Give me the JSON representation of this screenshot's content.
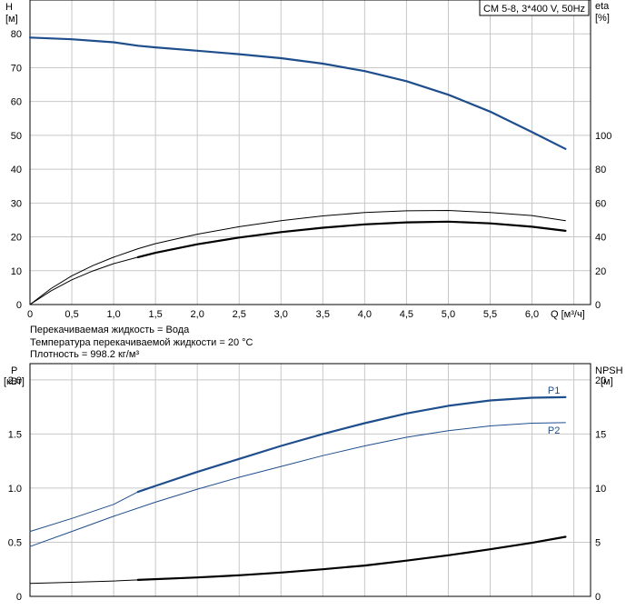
{
  "chart_data": [
    {
      "type": "line",
      "title": "CM 5-8, 3*400 V, 50Hz",
      "xlabel": "Q [м³/ч]",
      "ylabel_left": [
        "H",
        "[м]"
      ],
      "ylabel_right": [
        "eta",
        "[%]"
      ],
      "xlim": [
        0,
        6.7
      ],
      "ylim_left": [
        0,
        90
      ],
      "ylim_right": [
        0,
        180
      ],
      "x_ticks": [
        "0",
        "0,5",
        "1,0",
        "1,5",
        "2,0",
        "2,5",
        "3,0",
        "3,5",
        "4,0",
        "4,5",
        "5,0",
        "5,5",
        "6,0"
      ],
      "y_ticks_left": [
        "0",
        "10",
        "20",
        "30",
        "40",
        "50",
        "60",
        "70",
        "80"
      ],
      "y_ticks_right": [
        "0",
        "20",
        "40",
        "60",
        "80",
        "100"
      ],
      "grid": true,
      "series": [
        {
          "color": "#1f4e8c",
          "axis": "left",
          "width": 2.2,
          "x": [
            0,
            0.5,
            1.0,
            1.29,
            1.5,
            2.0,
            2.5,
            3.0,
            3.5,
            4.0,
            4.5,
            5.0,
            5.5,
            6.0,
            6.4
          ],
          "y": [
            78.9,
            78.4,
            77.5,
            76.5,
            76.0,
            75.0,
            74.0,
            72.8,
            71.2,
            69.0,
            66.0,
            62.0,
            57.0,
            51.0,
            46.0
          ]
        },
        {
          "color": "#000000",
          "axis": "right",
          "width": 1.0,
          "x": [
            0,
            0.25,
            0.5,
            0.75,
            1.0,
            1.29,
            1.5,
            2.0,
            2.5,
            3.0,
            3.5,
            4.0,
            4.5,
            5.0,
            5.5,
            6.0,
            6.4
          ],
          "y": [
            0,
            9.4,
            17.0,
            23.0,
            28.0,
            33.0,
            36.0,
            41.6,
            46.0,
            49.6,
            52.4,
            54.4,
            55.4,
            55.6,
            54.4,
            52.6,
            49.6
          ]
        },
        {
          "color": "#000000",
          "axis": "right",
          "width": 1.0,
          "x": [
            0,
            0.25,
            0.5,
            0.75,
            1.0,
            1.29
          ],
          "y": [
            0,
            8.0,
            14.6,
            19.8,
            24.2,
            28.0
          ]
        },
        {
          "color": "#000000",
          "axis": "right",
          "width": 2.2,
          "x": [
            1.29,
            1.5,
            2.0,
            2.5,
            3.0,
            3.5,
            4.0,
            4.5,
            5.0,
            5.5,
            6.0,
            6.4
          ],
          "y": [
            28.0,
            30.6,
            35.6,
            39.6,
            42.8,
            45.4,
            47.4,
            48.6,
            49.0,
            48.0,
            46.0,
            43.6
          ]
        }
      ]
    },
    {
      "type": "line",
      "xlabel": "",
      "ylabel_left": [
        "P",
        "[кВт]"
      ],
      "ylabel_right": [
        "NPSH",
        "[м]"
      ],
      "xlim": [
        0,
        6.7
      ],
      "ylim_left": [
        0,
        2.15
      ],
      "ylim_right": [
        0,
        21.5
      ],
      "y_ticks_left": [
        "0",
        "0.5",
        "1.0",
        "1.5",
        "2.0"
      ],
      "y_ticks_right": [
        "0",
        "5",
        "10",
        "15",
        "20"
      ],
      "grid": true,
      "series": [
        {
          "name": "P1",
          "color": "#1f4e8c",
          "axis": "left",
          "width": 2.2,
          "x": [
            1.29,
            1.5,
            2.0,
            2.5,
            3.0,
            3.5,
            4.0,
            4.5,
            5.0,
            5.5,
            6.0,
            6.4
          ],
          "y": [
            0.965,
            1.02,
            1.15,
            1.27,
            1.39,
            1.5,
            1.6,
            1.69,
            1.76,
            1.81,
            1.835,
            1.84
          ]
        },
        {
          "color": "#1f4e8c",
          "axis": "left",
          "width": 1.0,
          "x": [
            0,
            0.5,
            1.0,
            1.29
          ],
          "y": [
            0.6,
            0.72,
            0.85,
            0.965
          ]
        },
        {
          "name": "P2",
          "color": "#1f4e8c",
          "axis": "left",
          "width": 1.0,
          "x": [
            0,
            0.5,
            1.0,
            1.5,
            2.0,
            2.5,
            3.0,
            3.5,
            4.0,
            4.5,
            5.0,
            5.5,
            6.0,
            6.4
          ],
          "y": [
            0.46,
            0.6,
            0.74,
            0.87,
            0.99,
            1.1,
            1.2,
            1.3,
            1.39,
            1.47,
            1.53,
            1.575,
            1.6,
            1.605
          ]
        },
        {
          "color": "#000000",
          "axis": "right",
          "width": 1.0,
          "x": [
            0,
            0.5,
            1.0,
            1.29
          ],
          "y": [
            1.2,
            1.3,
            1.42,
            1.52
          ]
        },
        {
          "color": "#000000",
          "axis": "right",
          "width": 2.2,
          "x": [
            1.29,
            2.0,
            2.5,
            3.0,
            3.5,
            4.0,
            4.5,
            5.0,
            5.5,
            6.0,
            6.4
          ],
          "y": [
            1.52,
            1.75,
            1.95,
            2.2,
            2.5,
            2.85,
            3.3,
            3.8,
            4.35,
            4.95,
            5.5
          ]
        }
      ]
    }
  ],
  "notes": [
    "Перекачиваемая жидкость = Вода",
    "Температура перекачиваемой жидкости = 20 °C",
    "Плотность = 998.2 кг/м³"
  ]
}
